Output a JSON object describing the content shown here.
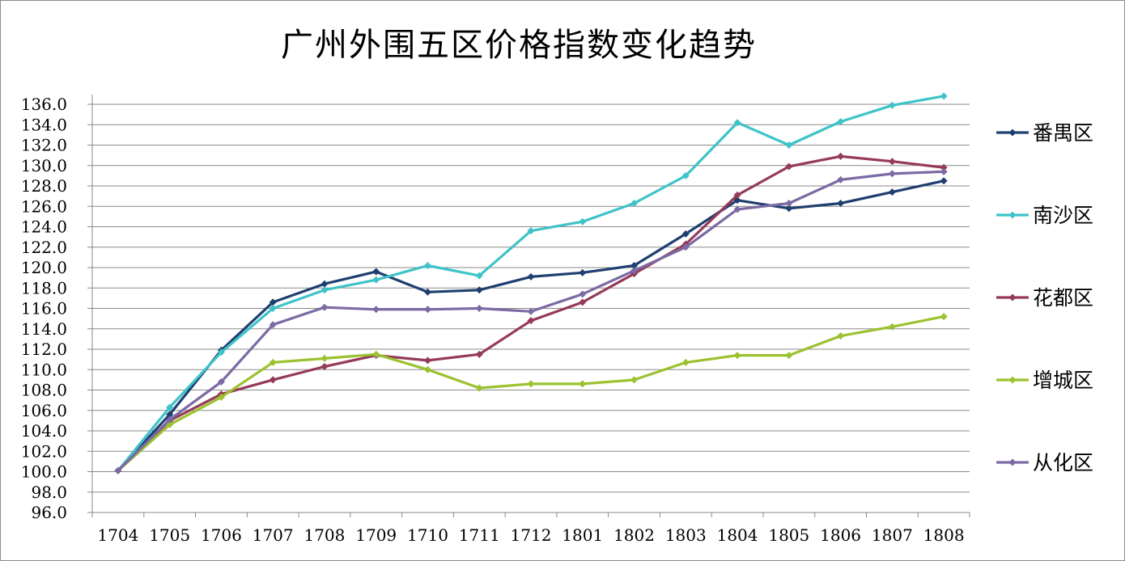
{
  "chart_data": {
    "type": "line",
    "title": "广州外围五区价格指数变化趋势",
    "xlabel": "",
    "ylabel": "",
    "categories": [
      "1704",
      "1705",
      "1706",
      "1707",
      "1708",
      "1709",
      "1710",
      "1711",
      "1712",
      "1801",
      "1802",
      "1803",
      "1804",
      "1805",
      "1806",
      "1807",
      "1808"
    ],
    "ylim": [
      96.0,
      136.0
    ],
    "yticks": [
      "96.0",
      "98.0",
      "100.0",
      "102.0",
      "104.0",
      "106.0",
      "108.0",
      "110.0",
      "112.0",
      "114.0",
      "116.0",
      "118.0",
      "120.0",
      "122.0",
      "124.0",
      "126.0",
      "128.0",
      "130.0",
      "132.0",
      "134.0",
      "136.0"
    ],
    "grid": "horizontal",
    "legend_position": "right",
    "series": [
      {
        "name": "番禺区",
        "color": "#1f3f70",
        "values": [
          100.1,
          105.6,
          111.9,
          116.6,
          118.4,
          119.6,
          117.6,
          117.8,
          119.1,
          119.5,
          120.2,
          123.3,
          126.6,
          125.8,
          126.3,
          127.4,
          128.5
        ]
      },
      {
        "name": "南沙区",
        "color": "#3ec3c8",
        "values": [
          100.1,
          106.3,
          111.7,
          116.0,
          117.8,
          118.8,
          120.2,
          119.2,
          123.6,
          124.5,
          126.3,
          129.0,
          134.2,
          132.0,
          134.3,
          135.9,
          136.8
        ]
      },
      {
        "name": "花都区",
        "color": "#953a58",
        "values": [
          100.1,
          105.0,
          107.6,
          109.0,
          110.3,
          111.4,
          110.9,
          111.5,
          114.8,
          116.6,
          119.4,
          122.3,
          127.1,
          129.9,
          130.9,
          130.4,
          129.8
        ]
      },
      {
        "name": "增城区",
        "color": "#9bc22f",
        "values": [
          100.1,
          104.6,
          107.3,
          110.7,
          111.1,
          111.5,
          110.0,
          108.2,
          108.6,
          108.6,
          109.0,
          110.7,
          111.4,
          111.4,
          113.3,
          114.2,
          115.2
        ]
      },
      {
        "name": "从化区",
        "color": "#7b6aa3",
        "values": [
          100.1,
          105.1,
          108.8,
          114.4,
          116.1,
          115.9,
          115.9,
          116.0,
          115.7,
          117.4,
          119.7,
          122.0,
          125.7,
          126.3,
          128.6,
          129.2,
          129.4
        ]
      }
    ]
  }
}
